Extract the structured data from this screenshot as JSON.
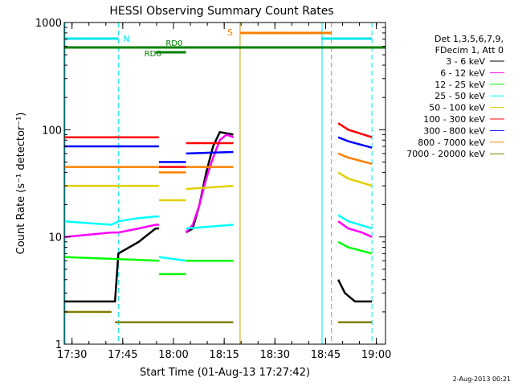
{
  "chart_data": {
    "type": "line",
    "title": "HESSI Observing Summary Count Rates",
    "xlabel": "Start Time (01-Aug-13 17:27:42)",
    "ylabel": "Count Rate (s⁻¹ detector⁻¹)",
    "yscale": "log",
    "ylim": [
      1,
      1000
    ],
    "xlim_minutes": [
      0,
      95
    ],
    "x_tick_labels": [
      "17:30",
      "17:45",
      "18:00",
      "18:15",
      "18:30",
      "18:45",
      "19:00"
    ],
    "y_tick_labels": [
      "1",
      "10",
      "100",
      "1000"
    ],
    "legend_header": [
      "Det 1,3,5,6,7,9,",
      "FDecim 1, Att 0"
    ],
    "timestamp": "2-Aug-2013 00:21",
    "flags": {
      "night_label": "N",
      "saa_label": "S",
      "rd0_label": "RD0",
      "rd6_label": "RD6"
    },
    "colors": {
      "cyan": "#00e5ee",
      "orange": "#ff7f00",
      "green": "#008000",
      "saa_line": "#c8a000"
    },
    "series": [
      {
        "name": "3 - 6 keV",
        "color": "#000000",
        "segments": [
          [
            [
              0,
              2.5
            ],
            [
              15,
              2.5
            ],
            [
              16,
              7
            ],
            [
              22,
              9
            ],
            [
              27,
              12
            ],
            [
              28,
              12
            ]
          ],
          [
            [
              36,
              11
            ],
            [
              38,
              12
            ],
            [
              40,
              20
            ],
            [
              42,
              40
            ],
            [
              44,
              70
            ],
            [
              46,
              95
            ],
            [
              50,
              90
            ]
          ],
          [
            [
              81,
              4
            ],
            [
              83,
              3
            ],
            [
              86,
              2.5
            ],
            [
              91,
              2.5
            ]
          ]
        ]
      },
      {
        "name": "6 - 12 keV",
        "color": "#ff00ff",
        "segments": [
          [
            [
              0,
              10
            ],
            [
              14,
              11
            ],
            [
              16,
              11
            ],
            [
              22,
              12
            ],
            [
              27,
              13
            ],
            [
              28,
              13
            ]
          ],
          [
            [
              36,
              11
            ],
            [
              38,
              13
            ],
            [
              40,
              20
            ],
            [
              42,
              35
            ],
            [
              44,
              55
            ],
            [
              46,
              80
            ],
            [
              48,
              90
            ],
            [
              50,
              85
            ]
          ],
          [
            [
              81,
              14
            ],
            [
              84,
              12
            ],
            [
              88,
              11
            ],
            [
              91,
              10
            ]
          ]
        ]
      },
      {
        "name": "12 - 25 keV",
        "color": "#00ff00",
        "segments": [
          [
            [
              0,
              6.5
            ],
            [
              28,
              6
            ]
          ],
          [
            [
              28,
              4.5
            ],
            [
              36,
              4.5
            ]
          ],
          [
            [
              36,
              6
            ],
            [
              50,
              6
            ]
          ],
          [
            [
              81,
              9
            ],
            [
              84,
              8
            ],
            [
              91,
              7
            ]
          ]
        ]
      },
      {
        "name": "25 - 50 keV",
        "color": "#00ffff",
        "segments": [
          [
            [
              0,
              14
            ],
            [
              14,
              13
            ],
            [
              16,
              14
            ],
            [
              22,
              15
            ],
            [
              27,
              15.5
            ],
            [
              28,
              15.5
            ]
          ],
          [
            [
              28,
              6.5
            ],
            [
              36,
              6
            ]
          ],
          [
            [
              36,
              12
            ],
            [
              50,
              13
            ]
          ],
          [
            [
              81,
              16
            ],
            [
              84,
              14
            ],
            [
              91,
              12
            ]
          ]
        ]
      },
      {
        "name": "50 - 100 keV",
        "color": "#e0d000",
        "segments": [
          [
            [
              0,
              30
            ],
            [
              28,
              30
            ]
          ],
          [
            [
              28,
              22
            ],
            [
              36,
              22
            ]
          ],
          [
            [
              36,
              28
            ],
            [
              50,
              30
            ]
          ],
          [
            [
              81,
              40
            ],
            [
              84,
              35
            ],
            [
              91,
              30
            ]
          ]
        ]
      },
      {
        "name": "100 - 300 keV",
        "color": "#ff0000",
        "segments": [
          [
            [
              0,
              85
            ],
            [
              28,
              85
            ]
          ],
          [
            [
              28,
              45
            ],
            [
              36,
              45
            ]
          ],
          [
            [
              36,
              75
            ],
            [
              50,
              75
            ]
          ],
          [
            [
              81,
              115
            ],
            [
              84,
              100
            ],
            [
              91,
              85
            ]
          ]
        ]
      },
      {
        "name": "300 - 800 keV",
        "color": "#0000ff",
        "segments": [
          [
            [
              0,
              70
            ],
            [
              28,
              70
            ]
          ],
          [
            [
              28,
              50
            ],
            [
              36,
              50
            ]
          ],
          [
            [
              36,
              60
            ],
            [
              50,
              62
            ]
          ],
          [
            [
              81,
              85
            ],
            [
              84,
              78
            ],
            [
              91,
              68
            ]
          ]
        ]
      },
      {
        "name": "800 - 7000 keV",
        "color": "#ff7f00",
        "segments": [
          [
            [
              0,
              45
            ],
            [
              28,
              45
            ]
          ],
          [
            [
              28,
              40
            ],
            [
              36,
              40
            ]
          ],
          [
            [
              36,
              45
            ],
            [
              50,
              45
            ]
          ],
          [
            [
              81,
              60
            ],
            [
              84,
              55
            ],
            [
              91,
              48
            ]
          ]
        ]
      },
      {
        "name": "7000 - 20000 keV",
        "color": "#808000",
        "segments": [
          [
            [
              0,
              2
            ],
            [
              14,
              2
            ]
          ],
          [
            [
              15,
              1.6
            ],
            [
              50,
              1.6
            ]
          ],
          [
            [
              81,
              1.6
            ],
            [
              91,
              1.6
            ]
          ]
        ]
      }
    ],
    "night_intervals_minutes": [
      [
        0,
        16
      ],
      [
        76,
        91
      ]
    ],
    "saa_interval_minutes": [
      52,
      79
    ],
    "rd0_intervals_minutes": [
      [
        0,
        95
      ]
    ],
    "rd6_interval_minutes": [
      27,
      36
    ],
    "saa_boundary_minutes": [
      52,
      79
    ]
  }
}
